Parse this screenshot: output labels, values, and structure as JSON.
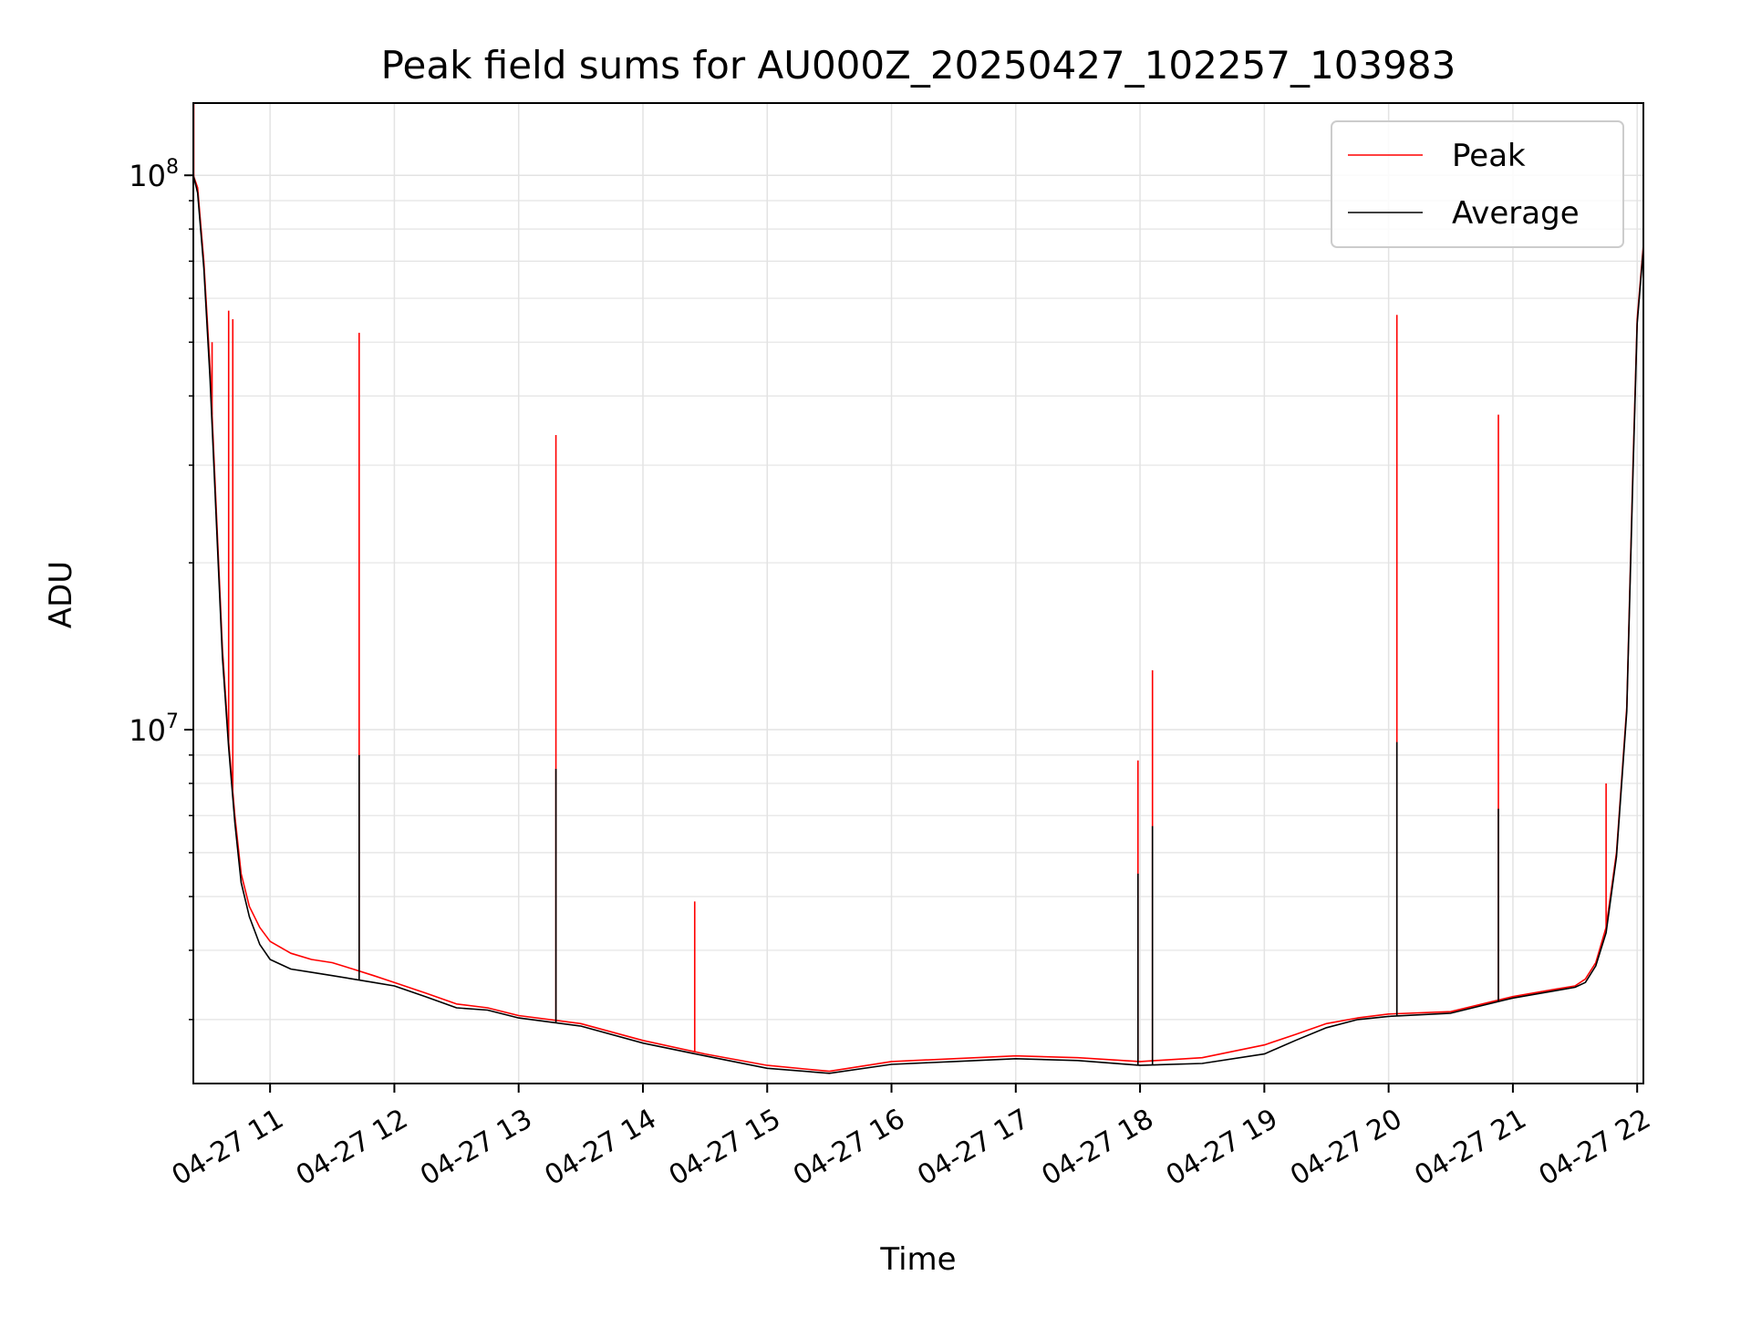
{
  "chart_data": {
    "type": "line",
    "title": "Peak field sums for AU000Z_20250427_102257_103983",
    "xlabel": "Time",
    "ylabel": "ADU",
    "yscale": "log",
    "ylim": [
      2300000,
      135000000
    ],
    "xlim": [
      "2025-04-27 10:22:57",
      "2025-04-27 22:03:00"
    ],
    "x_ticks": [
      {
        "value": "2025-04-27 11:00",
        "label": "04-27 11"
      },
      {
        "value": "2025-04-27 12:00",
        "label": "04-27 12"
      },
      {
        "value": "2025-04-27 13:00",
        "label": "04-27 13"
      },
      {
        "value": "2025-04-27 14:00",
        "label": "04-27 14"
      },
      {
        "value": "2025-04-27 15:00",
        "label": "04-27 15"
      },
      {
        "value": "2025-04-27 16:00",
        "label": "04-27 16"
      },
      {
        "value": "2025-04-27 17:00",
        "label": "04-27 17"
      },
      {
        "value": "2025-04-27 18:00",
        "label": "04-27 18"
      },
      {
        "value": "2025-04-27 19:00",
        "label": "04-27 19"
      },
      {
        "value": "2025-04-27 20:00",
        "label": "04-27 20"
      },
      {
        "value": "2025-04-27 21:00",
        "label": "04-27 21"
      },
      {
        "value": "2025-04-27 22:00",
        "label": "04-27 22"
      }
    ],
    "y_ticks": [
      {
        "value": 10000000,
        "base": "10",
        "exp": "7"
      },
      {
        "value": 100000000,
        "base": "10",
        "exp": "8"
      }
    ],
    "grid": true,
    "legend": "top-right",
    "series": [
      {
        "name": "Peak",
        "color": "#ff0000",
        "x": [
          "2025-04-27 10:22:57",
          "2025-04-27 10:25",
          "2025-04-27 10:28",
          "2025-04-27 10:31",
          "2025-04-27 10:34",
          "2025-04-27 10:37",
          "2025-04-27 10:40",
          "2025-04-27 10:43",
          "2025-04-27 10:46",
          "2025-04-27 10:50",
          "2025-04-27 10:55",
          "2025-04-27 11:00",
          "2025-04-27 11:10",
          "2025-04-27 11:20",
          "2025-04-27 11:30",
          "2025-04-27 11:40",
          "2025-04-27 11:50",
          "2025-04-27 12:00",
          "2025-04-27 12:15",
          "2025-04-27 12:30",
          "2025-04-27 12:45",
          "2025-04-27 13:00",
          "2025-04-27 13:30",
          "2025-04-27 14:00",
          "2025-04-27 14:30",
          "2025-04-27 15:00",
          "2025-04-27 15:30",
          "2025-04-27 16:00",
          "2025-04-27 16:30",
          "2025-04-27 17:00",
          "2025-04-27 17:30",
          "2025-04-27 18:00",
          "2025-04-27 18:30",
          "2025-04-27 19:00",
          "2025-04-27 19:15",
          "2025-04-27 19:30",
          "2025-04-27 19:45",
          "2025-04-27 20:00",
          "2025-04-27 20:30",
          "2025-04-27 21:00",
          "2025-04-27 21:20",
          "2025-04-27 21:30",
          "2025-04-27 21:35",
          "2025-04-27 21:40",
          "2025-04-27 21:45",
          "2025-04-27 21:50",
          "2025-04-27 21:55",
          "2025-04-27 21:58",
          "2025-04-27 22:00",
          "2025-04-27 22:03"
        ],
        "y": [
          100000000,
          95000000,
          70000000,
          45000000,
          25000000,
          14000000,
          9500000,
          7000000,
          5500000,
          4800000,
          4400000,
          4150000,
          3950000,
          3850000,
          3800000,
          3700000,
          3600000,
          3500000,
          3350000,
          3200000,
          3150000,
          3050000,
          2950000,
          2750000,
          2600000,
          2480000,
          2420000,
          2520000,
          2550000,
          2580000,
          2560000,
          2520000,
          2560000,
          2700000,
          2820000,
          2950000,
          3020000,
          3070000,
          3100000,
          3300000,
          3400000,
          3450000,
          3550000,
          3800000,
          4400000,
          6000000,
          11000000,
          30000000,
          55000000,
          75000000
        ],
        "spikes": [
          {
            "x": "2025-04-27 10:23:10",
            "y": 140000000
          },
          {
            "x": "2025-04-27 10:32",
            "y": 50000000
          },
          {
            "x": "2025-04-27 10:40",
            "y": 57000000
          },
          {
            "x": "2025-04-27 10:42",
            "y": 55000000
          },
          {
            "x": "2025-04-27 11:43",
            "y": 52000000
          },
          {
            "x": "2025-04-27 13:18",
            "y": 34000000
          },
          {
            "x": "2025-04-27 14:25",
            "y": 4900000
          },
          {
            "x": "2025-04-27 17:59",
            "y": 8800000
          },
          {
            "x": "2025-04-27 18:06",
            "y": 12800000
          },
          {
            "x": "2025-04-27 20:04",
            "y": 56000000
          },
          {
            "x": "2025-04-27 20:53",
            "y": 37000000
          },
          {
            "x": "2025-04-27 21:45",
            "y": 8000000
          }
        ]
      },
      {
        "name": "Average",
        "color": "#000000",
        "x": [
          "2025-04-27 10:22:57",
          "2025-04-27 10:25",
          "2025-04-27 10:28",
          "2025-04-27 10:31",
          "2025-04-27 10:34",
          "2025-04-27 10:37",
          "2025-04-27 10:40",
          "2025-04-27 10:43",
          "2025-04-27 10:46",
          "2025-04-27 10:50",
          "2025-04-27 10:55",
          "2025-04-27 11:00",
          "2025-04-27 11:10",
          "2025-04-27 11:20",
          "2025-04-27 11:30",
          "2025-04-27 11:40",
          "2025-04-27 11:50",
          "2025-04-27 12:00",
          "2025-04-27 12:15",
          "2025-04-27 12:30",
          "2025-04-27 12:45",
          "2025-04-27 13:00",
          "2025-04-27 13:30",
          "2025-04-27 14:00",
          "2025-04-27 14:30",
          "2025-04-27 15:00",
          "2025-04-27 15:30",
          "2025-04-27 16:00",
          "2025-04-27 16:30",
          "2025-04-27 17:00",
          "2025-04-27 17:30",
          "2025-04-27 18:00",
          "2025-04-27 18:30",
          "2025-04-27 19:00",
          "2025-04-27 19:15",
          "2025-04-27 19:30",
          "2025-04-27 19:45",
          "2025-04-27 20:00",
          "2025-04-27 20:30",
          "2025-04-27 21:00",
          "2025-04-27 21:20",
          "2025-04-27 21:30",
          "2025-04-27 21:35",
          "2025-04-27 21:40",
          "2025-04-27 21:45",
          "2025-04-27 21:50",
          "2025-04-27 21:55",
          "2025-04-27 21:58",
          "2025-04-27 22:00",
          "2025-04-27 22:03"
        ],
        "y": [
          100000000,
          93000000,
          68000000,
          43000000,
          24000000,
          13500000,
          9300000,
          6800000,
          5300000,
          4600000,
          4100000,
          3850000,
          3700000,
          3650000,
          3600000,
          3550000,
          3500000,
          3450000,
          3300000,
          3150000,
          3120000,
          3020000,
          2920000,
          2720000,
          2580000,
          2450000,
          2400000,
          2490000,
          2520000,
          2550000,
          2530000,
          2480000,
          2500000,
          2600000,
          2750000,
          2900000,
          3000000,
          3040000,
          3080000,
          3280000,
          3380000,
          3430000,
          3500000,
          3750000,
          4300000,
          5900000,
          10800000,
          29000000,
          54000000,
          74000000
        ],
        "spikes": [
          {
            "x": "2025-04-27 11:43",
            "y": 9000000
          },
          {
            "x": "2025-04-27 13:18",
            "y": 8500000
          },
          {
            "x": "2025-04-27 17:59",
            "y": 5500000
          },
          {
            "x": "2025-04-27 18:06",
            "y": 6700000
          },
          {
            "x": "2025-04-27 20:04",
            "y": 9500000
          },
          {
            "x": "2025-04-27 20:53",
            "y": 7200000
          }
        ]
      }
    ]
  }
}
